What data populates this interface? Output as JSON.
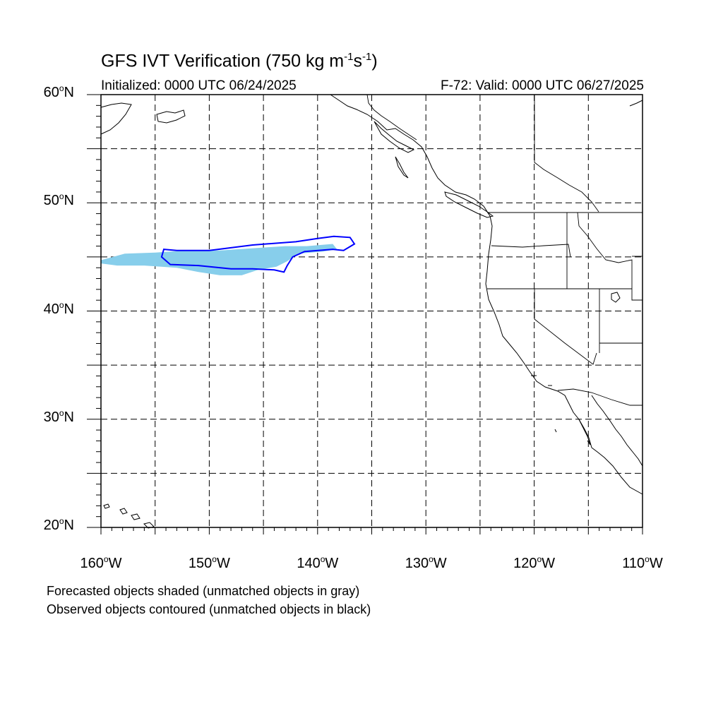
{
  "title": {
    "main": "GFS IVT Verification (750 kg m",
    "exp1": "-1",
    "mid": "s",
    "exp2": "-1",
    "end": ")"
  },
  "init_label": "Initialized: 0000 UTC 06/24/2025",
  "valid_label": "F-72: Valid: 0000 UTC 06/27/2025",
  "map": {
    "lon_range": [
      -160,
      -110
    ],
    "lat_range": [
      20,
      60
    ],
    "grid_step_deg": 5,
    "lat_ticks": [
      {
        "value": 60,
        "num": "60",
        "hemi": "N"
      },
      {
        "value": 50,
        "num": "50",
        "hemi": "N"
      },
      {
        "value": 40,
        "num": "40",
        "hemi": "N"
      },
      {
        "value": 30,
        "num": "30",
        "hemi": "N"
      },
      {
        "value": 20,
        "num": "20",
        "hemi": "N"
      }
    ],
    "lon_ticks": [
      {
        "value": -160,
        "num": "160",
        "hemi": "W"
      },
      {
        "value": -150,
        "num": "150",
        "hemi": "W"
      },
      {
        "value": -140,
        "num": "140",
        "hemi": "W"
      },
      {
        "value": -130,
        "num": "130",
        "hemi": "W"
      },
      {
        "value": -120,
        "num": "120",
        "hemi": "W"
      },
      {
        "value": -110,
        "num": "110",
        "hemi": "W"
      }
    ],
    "forecast_fill_color": "#87ceeb",
    "observed_contour_color": "#0000ff",
    "forecast_object": [
      [
        -160,
        44.7
      ],
      [
        -157.8,
        45.3
      ],
      [
        -155,
        45.4
      ],
      [
        -152,
        45.6
      ],
      [
        -149,
        45.6
      ],
      [
        -146,
        45.8
      ],
      [
        -143,
        46.0
      ],
      [
        -141,
        46.0
      ],
      [
        -138.6,
        46.2
      ],
      [
        -138.2,
        45.7
      ],
      [
        -139.5,
        45.5
      ],
      [
        -141.8,
        45.3
      ],
      [
        -142.8,
        44.6
      ],
      [
        -143.8,
        44.1
      ],
      [
        -145.5,
        43.8
      ],
      [
        -147,
        43.3
      ],
      [
        -149,
        43.3
      ],
      [
        -151,
        43.6
      ],
      [
        -153,
        44.0
      ],
      [
        -156,
        44.2
      ],
      [
        -158.5,
        44.2
      ],
      [
        -160,
        44.4
      ]
    ],
    "observed_object": [
      [
        -154.2,
        45.7
      ],
      [
        -153,
        45.6
      ],
      [
        -150,
        45.6
      ],
      [
        -146,
        46.1
      ],
      [
        -142,
        46.4
      ],
      [
        -140,
        46.7
      ],
      [
        -138.5,
        46.9
      ],
      [
        -137,
        46.8
      ],
      [
        -136.6,
        46.2
      ],
      [
        -137.6,
        45.6
      ],
      [
        -138.6,
        45.7
      ],
      [
        -141.2,
        45.5
      ],
      [
        -142.3,
        45.0
      ],
      [
        -142.8,
        44.2
      ],
      [
        -143.1,
        43.6
      ],
      [
        -144,
        43.8
      ],
      [
        -146,
        43.9
      ],
      [
        -148,
        43.9
      ],
      [
        -151,
        44.2
      ],
      [
        -153.6,
        44.3
      ],
      [
        -154.4,
        45.0
      ]
    ]
  },
  "footer": {
    "line1": "Forecasted objects shaded (unmatched objects in gray)",
    "line2": "Observed objects contoured (unmatched objects in black)"
  }
}
